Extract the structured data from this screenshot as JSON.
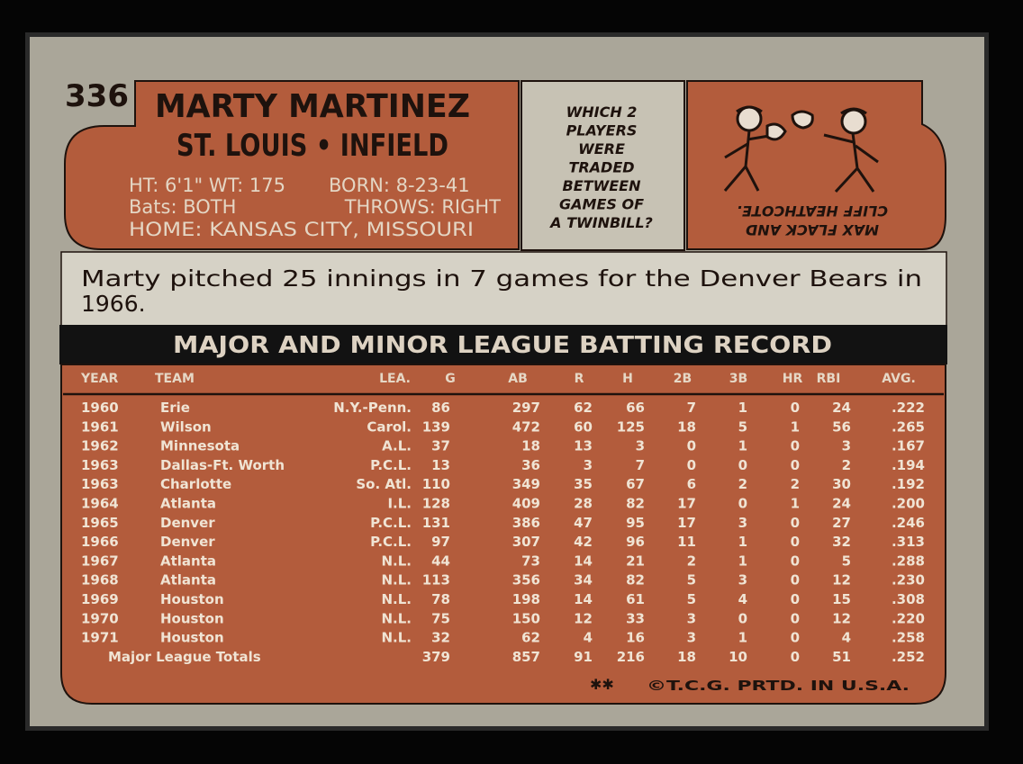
{
  "card_number": "336",
  "name": "MARTY MARTINEZ",
  "team_position": "ST. LOUIS • INFIELD",
  "bio": {
    "height_weight": "HT: 6'1\" WT: 175",
    "born": "BORN: 8-23-41",
    "bats": "Bats: BOTH",
    "throws": "THROWS: RIGHT",
    "home": "HOME: KANSAS CITY, MISSOURI"
  },
  "cartoon": {
    "question": [
      "WHICH 2",
      "PLAYERS",
      "WERE",
      "TRADED",
      "BETWEEN",
      "GAMES OF",
      "A TWINBILL?"
    ],
    "answer": [
      "MAX FLACK AND",
      "CLIFF HEATHCOTE."
    ]
  },
  "blurb": [
    "Marty pitched 25 innings in 7 games for the Denver Bears in",
    "1966."
  ],
  "record": {
    "title": "MAJOR AND MINOR LEAGUE BATTING RECORD",
    "headers": [
      "YEAR",
      "TEAM",
      "LEA.",
      "G",
      "AB",
      "R",
      "H",
      "2B",
      "3B",
      "HR",
      "RBI",
      "AVG."
    ],
    "rows": [
      [
        "1960",
        "Erie",
        "N.Y.-Penn.",
        "86",
        "297",
        "62",
        "66",
        "7",
        "1",
        "0",
        "24",
        ".222"
      ],
      [
        "1961",
        "Wilson",
        "Carol.",
        "139",
        "472",
        "60",
        "125",
        "18",
        "5",
        "1",
        "56",
        ".265"
      ],
      [
        "1962",
        "Minnesota",
        "A.L.",
        "37",
        "18",
        "13",
        "3",
        "0",
        "1",
        "0",
        "3",
        ".167"
      ],
      [
        "1963",
        "Dallas-Ft. Worth",
        "P.C.L.",
        "13",
        "36",
        "3",
        "7",
        "0",
        "0",
        "0",
        "2",
        ".194"
      ],
      [
        "1963",
        "Charlotte",
        "So. Atl.",
        "110",
        "349",
        "35",
        "67",
        "6",
        "2",
        "2",
        "30",
        ".192"
      ],
      [
        "1964",
        "Atlanta",
        "I.L.",
        "128",
        "409",
        "28",
        "82",
        "17",
        "0",
        "1",
        "24",
        ".200"
      ],
      [
        "1965",
        "Denver",
        "P.C.L.",
        "131",
        "386",
        "47",
        "95",
        "17",
        "3",
        "0",
        "27",
        ".246"
      ],
      [
        "1966",
        "Denver",
        "P.C.L.",
        "97",
        "307",
        "42",
        "96",
        "11",
        "1",
        "0",
        "32",
        ".313"
      ],
      [
        "1967",
        "Atlanta",
        "N.L.",
        "44",
        "73",
        "14",
        "21",
        "2",
        "1",
        "0",
        "5",
        ".288"
      ],
      [
        "1968",
        "Atlanta",
        "N.L.",
        "113",
        "356",
        "34",
        "82",
        "5",
        "3",
        "0",
        "12",
        ".230"
      ],
      [
        "1969",
        "Houston",
        "N.L.",
        "78",
        "198",
        "14",
        "61",
        "5",
        "4",
        "0",
        "15",
        ".308"
      ],
      [
        "1970",
        "Houston",
        "N.L.",
        "75",
        "150",
        "12",
        "33",
        "3",
        "0",
        "0",
        "12",
        ".220"
      ],
      [
        "1971",
        "Houston",
        "N.L.",
        "32",
        "62",
        "4",
        "16",
        "3",
        "1",
        "0",
        "4",
        ".258"
      ]
    ],
    "totals": {
      "label": "Major League Totals",
      "values": [
        "379",
        "857",
        "91",
        "216",
        "18",
        "10",
        "0",
        "51",
        ".252"
      ]
    }
  },
  "footer": "©T.C.G. PRTD. IN U.S.A."
}
